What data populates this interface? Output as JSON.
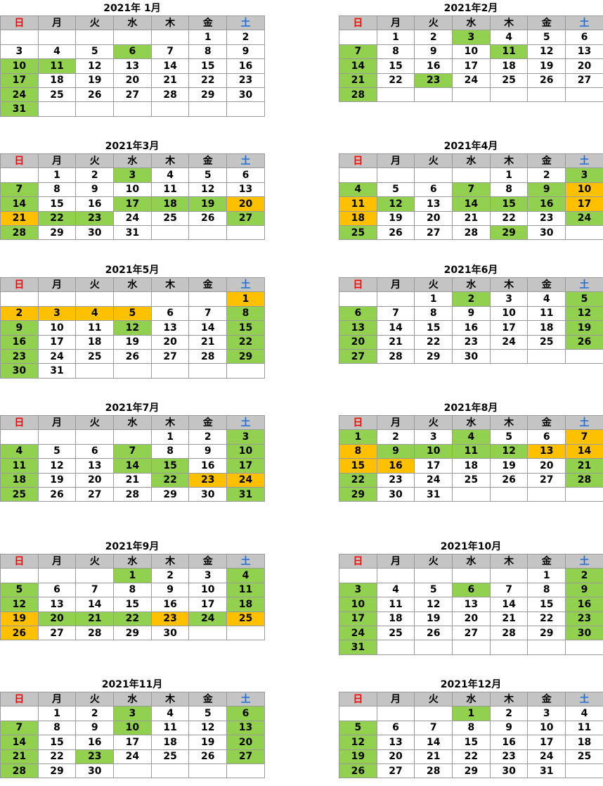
{
  "weekdays": [
    "日",
    "月",
    "火",
    "水",
    "木",
    "金",
    "土"
  ],
  "colors": {
    "green": "#92d050",
    "orange": "#ffc000",
    "header": "#c4c4c4",
    "sunday_text": "#ff0000",
    "saturday_text": "#1f6fd6"
  },
  "months": [
    {
      "title": "2021年 1月",
      "rows": [
        [
          "",
          "",
          "",
          "",
          "",
          "1",
          "2"
        ],
        [
          "3",
          "4",
          "5",
          "6",
          "7",
          "8",
          "9"
        ],
        [
          "10",
          "11",
          "12",
          "13",
          "14",
          "15",
          "16"
        ],
        [
          "17",
          "18",
          "19",
          "20",
          "21",
          "22",
          "23"
        ],
        [
          "24",
          "25",
          "26",
          "27",
          "28",
          "29",
          "30"
        ],
        [
          "31",
          "",
          "",
          "",
          "",
          "",
          ""
        ]
      ],
      "green": [
        "6",
        "10",
        "11",
        "17",
        "24",
        "31"
      ],
      "orange": []
    },
    {
      "title": "2021年2月",
      "rows": [
        [
          "",
          "1",
          "2",
          "3",
          "4",
          "5",
          "6"
        ],
        [
          "7",
          "8",
          "9",
          "10",
          "11",
          "12",
          "13"
        ],
        [
          "14",
          "15",
          "16",
          "17",
          "18",
          "19",
          "20"
        ],
        [
          "21",
          "22",
          "23",
          "24",
          "25",
          "26",
          "27"
        ],
        [
          "28",
          "",
          "",
          "",
          "",
          "",
          ""
        ]
      ],
      "green": [
        "3",
        "7",
        "11",
        "14",
        "21",
        "23",
        "28"
      ],
      "orange": []
    },
    {
      "title": "2021年3月",
      "rows": [
        [
          "",
          "1",
          "2",
          "3",
          "4",
          "5",
          "6"
        ],
        [
          "7",
          "8",
          "9",
          "10",
          "11",
          "12",
          "13"
        ],
        [
          "14",
          "15",
          "16",
          "17",
          "18",
          "19",
          "20"
        ],
        [
          "21",
          "22",
          "23",
          "24",
          "25",
          "26",
          "27"
        ],
        [
          "28",
          "29",
          "30",
          "31",
          "",
          "",
          ""
        ]
      ],
      "green": [
        "3",
        "7",
        "14",
        "17",
        "18",
        "19",
        "22",
        "23",
        "27",
        "28"
      ],
      "orange": [
        "20",
        "21"
      ]
    },
    {
      "title": "2021年4月",
      "rows": [
        [
          "",
          "",
          "",
          "",
          "1",
          "2",
          "3"
        ],
        [
          "4",
          "5",
          "6",
          "7",
          "8",
          "9",
          "10"
        ],
        [
          "11",
          "12",
          "13",
          "14",
          "15",
          "16",
          "17"
        ],
        [
          "18",
          "19",
          "20",
          "21",
          "22",
          "23",
          "24"
        ],
        [
          "25",
          "26",
          "27",
          "28",
          "29",
          "30",
          ""
        ]
      ],
      "green": [
        "3",
        "4",
        "7",
        "9",
        "12",
        "14",
        "15",
        "16",
        "24",
        "25",
        "29"
      ],
      "orange": [
        "10",
        "11",
        "17",
        "18"
      ]
    },
    {
      "title": "2021年5月",
      "rows": [
        [
          "",
          "",
          "",
          "",
          "",
          "",
          "1"
        ],
        [
          "2",
          "3",
          "4",
          "5",
          "6",
          "7",
          "8"
        ],
        [
          "9",
          "10",
          "11",
          "12",
          "13",
          "14",
          "15"
        ],
        [
          "16",
          "17",
          "18",
          "19",
          "20",
          "21",
          "22"
        ],
        [
          "23",
          "24",
          "25",
          "26",
          "27",
          "28",
          "29"
        ],
        [
          "30",
          "31",
          "",
          "",
          "",
          "",
          ""
        ]
      ],
      "green": [
        "8",
        "9",
        "12",
        "15",
        "16",
        "22",
        "23",
        "29",
        "30"
      ],
      "orange": [
        "1",
        "2",
        "3",
        "4",
        "5"
      ]
    },
    {
      "title": "2021年6月",
      "rows": [
        [
          "",
          "",
          "1",
          "2",
          "3",
          "4",
          "5"
        ],
        [
          "6",
          "7",
          "8",
          "9",
          "10",
          "11",
          "12"
        ],
        [
          "13",
          "14",
          "15",
          "16",
          "17",
          "18",
          "19"
        ],
        [
          "20",
          "21",
          "22",
          "23",
          "24",
          "25",
          "26"
        ],
        [
          "27",
          "28",
          "29",
          "30",
          "",
          "",
          ""
        ]
      ],
      "green": [
        "2",
        "5",
        "6",
        "12",
        "13",
        "19",
        "20",
        "26",
        "27"
      ],
      "orange": []
    },
    {
      "title": "2021年7月",
      "rows": [
        [
          "",
          "",
          "",
          "",
          "1",
          "2",
          "3"
        ],
        [
          "4",
          "5",
          "6",
          "7",
          "8",
          "9",
          "10"
        ],
        [
          "11",
          "12",
          "13",
          "14",
          "15",
          "16",
          "17"
        ],
        [
          "18",
          "19",
          "20",
          "21",
          "22",
          "23",
          "24"
        ],
        [
          "25",
          "26",
          "27",
          "28",
          "29",
          "30",
          "31"
        ]
      ],
      "green": [
        "3",
        "4",
        "7",
        "10",
        "11",
        "14",
        "15",
        "17",
        "18",
        "22",
        "25",
        "31"
      ],
      "orange": [
        "23",
        "24"
      ]
    },
    {
      "title": "2021年8月",
      "rows": [
        [
          "1",
          "2",
          "3",
          "4",
          "5",
          "6",
          "7"
        ],
        [
          "8",
          "9",
          "10",
          "11",
          "12",
          "13",
          "14"
        ],
        [
          "15",
          "16",
          "17",
          "18",
          "19",
          "20",
          "21"
        ],
        [
          "22",
          "23",
          "24",
          "25",
          "26",
          "27",
          "28"
        ],
        [
          "29",
          "30",
          "31",
          "",
          "",
          "",
          ""
        ]
      ],
      "green": [
        "1",
        "4",
        "9",
        "10",
        "11",
        "12",
        "21",
        "22",
        "28",
        "29"
      ],
      "orange": [
        "7",
        "8",
        "13",
        "14",
        "15",
        "16"
      ]
    },
    {
      "title": "2021年9月",
      "rows": [
        [
          "",
          "",
          "",
          "1",
          "2",
          "3",
          "4"
        ],
        [
          "5",
          "6",
          "7",
          "8",
          "9",
          "10",
          "11"
        ],
        [
          "12",
          "13",
          "14",
          "15",
          "16",
          "17",
          "18"
        ],
        [
          "19",
          "20",
          "21",
          "22",
          "23",
          "24",
          "25"
        ],
        [
          "26",
          "27",
          "28",
          "29",
          "30",
          "",
          ""
        ]
      ],
      "green": [
        "1",
        "4",
        "5",
        "11",
        "12",
        "18",
        "20",
        "21",
        "22",
        "24"
      ],
      "orange": [
        "19",
        "23",
        "25",
        "26"
      ]
    },
    {
      "title": "2021年10月",
      "rows": [
        [
          "",
          "",
          "",
          "",
          "",
          "1",
          "2"
        ],
        [
          "3",
          "4",
          "5",
          "6",
          "7",
          "8",
          "9"
        ],
        [
          "10",
          "11",
          "12",
          "13",
          "14",
          "15",
          "16"
        ],
        [
          "17",
          "18",
          "19",
          "20",
          "21",
          "22",
          "23"
        ],
        [
          "24",
          "25",
          "26",
          "27",
          "28",
          "29",
          "30"
        ],
        [
          "31",
          "",
          "",
          "",
          "",
          "",
          ""
        ]
      ],
      "green": [
        "2",
        "3",
        "6",
        "9",
        "10",
        "16",
        "17",
        "23",
        "24",
        "30",
        "31"
      ],
      "orange": []
    },
    {
      "title": "2021年11月",
      "rows": [
        [
          "",
          "1",
          "2",
          "3",
          "4",
          "5",
          "6"
        ],
        [
          "7",
          "8",
          "9",
          "10",
          "11",
          "12",
          "13"
        ],
        [
          "14",
          "15",
          "16",
          "17",
          "18",
          "19",
          "20"
        ],
        [
          "21",
          "22",
          "23",
          "24",
          "25",
          "26",
          "27"
        ],
        [
          "28",
          "29",
          "30",
          "",
          "",
          "",
          ""
        ]
      ],
      "green": [
        "3",
        "6",
        "7",
        "10",
        "13",
        "14",
        "20",
        "21",
        "23",
        "27",
        "28"
      ],
      "orange": []
    },
    {
      "title": "2021年12月",
      "rows": [
        [
          "",
          "",
          "",
          "1",
          "2",
          "3",
          "4"
        ],
        [
          "5",
          "6",
          "7",
          "8",
          "9",
          "10",
          "11"
        ],
        [
          "12",
          "13",
          "14",
          "15",
          "16",
          "17",
          "18"
        ],
        [
          "19",
          "20",
          "21",
          "22",
          "23",
          "24",
          "25"
        ],
        [
          "26",
          "27",
          "28",
          "29",
          "30",
          "31",
          ""
        ]
      ],
      "green": [
        "1",
        "5",
        "12",
        "19",
        "26"
      ],
      "orange": []
    }
  ]
}
